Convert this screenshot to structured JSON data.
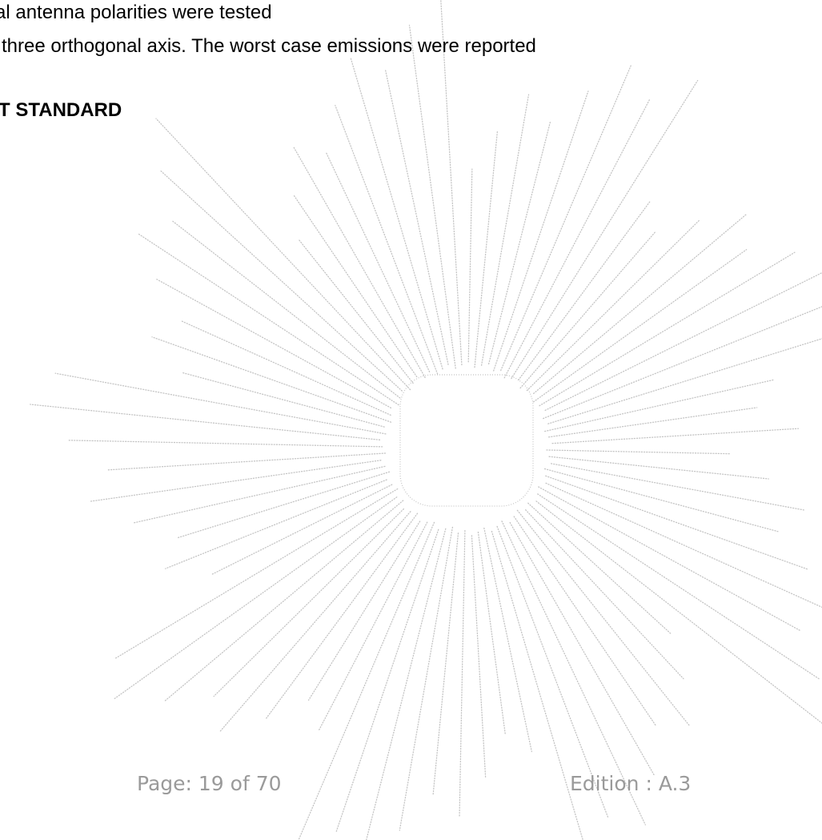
{
  "document": {
    "body_lines": [
      "cal antenna polarities were tested",
      "o three orthogonal axis. The worst case emissions were reported"
    ],
    "section_heading": "EST STANDARD"
  },
  "footer": {
    "page_label": "Page: 19 of 70",
    "edition_label": "Edition : A.3"
  },
  "watermark": {
    "description_icon": "starburst-watermark-icon",
    "color": "#c4c4c4"
  }
}
